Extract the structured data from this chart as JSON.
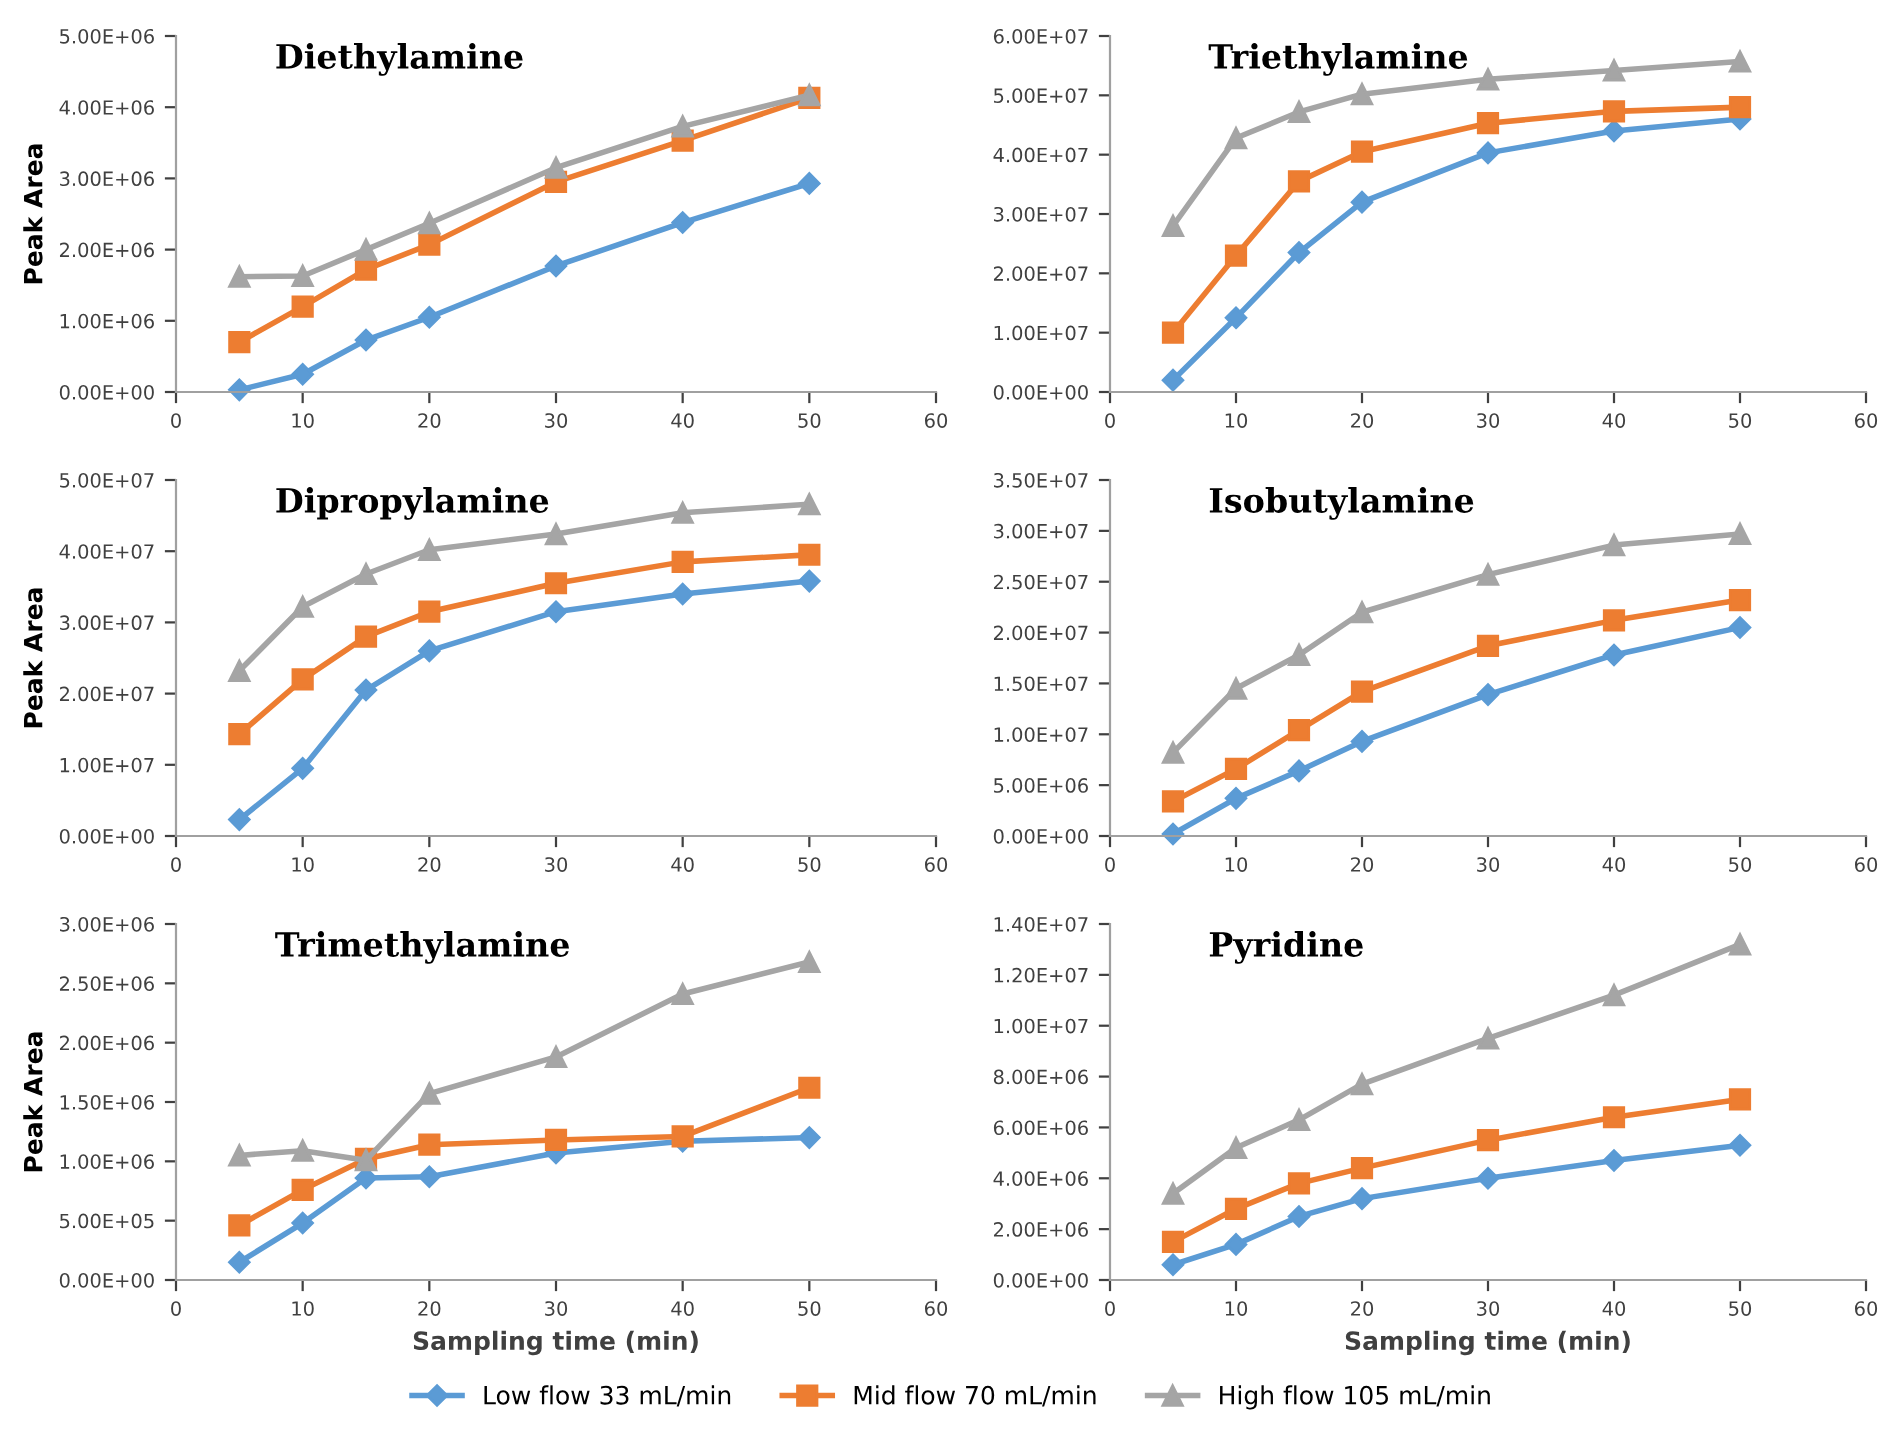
{
  "chart_data": [
    {
      "type": "line",
      "title": "Diethylamine",
      "ylabel": "Peak Area",
      "x": [
        5,
        10,
        15,
        20,
        30,
        40,
        50
      ],
      "xlim": [
        0,
        60
      ],
      "xticks": [
        0,
        10,
        20,
        30,
        40,
        50,
        60
      ],
      "ylim": [
        0,
        5000000
      ],
      "yticks": [
        {
          "value": 0,
          "label": "0.00E+00"
        },
        {
          "value": 1000000,
          "label": "1.00E+06"
        },
        {
          "value": 2000000,
          "label": "2.00E+06"
        },
        {
          "value": 3000000,
          "label": "3.00E+06"
        },
        {
          "value": 4000000,
          "label": "4.00E+06"
        },
        {
          "value": 5000000,
          "label": "5.00E+06"
        }
      ],
      "legend": "bottom",
      "series": [
        {
          "name": "Low flow 33 mL/min",
          "color": "#5b9bd5",
          "marker": "diamond",
          "values": [
            30000,
            250000,
            730000,
            1050000,
            1770000,
            2380000,
            2930000
          ]
        },
        {
          "name": "Mid flow 70 mL/min",
          "color": "#ed7d31",
          "marker": "square",
          "values": [
            700000,
            1200000,
            1720000,
            2070000,
            2950000,
            3530000,
            4130000
          ]
        },
        {
          "name": "High flow 105 mL/min",
          "color": "#a5a5a5",
          "marker": "triangle",
          "values": [
            1620000,
            1630000,
            2000000,
            2370000,
            3150000,
            3730000,
            4170000
          ]
        }
      ]
    },
    {
      "type": "line",
      "title": "Triethylamine",
      "x": [
        5,
        10,
        15,
        20,
        30,
        40,
        50
      ],
      "xlim": [
        0,
        60
      ],
      "xticks": [
        0,
        10,
        20,
        30,
        40,
        50,
        60
      ],
      "ylim": [
        0,
        60000000
      ],
      "yticks": [
        {
          "value": 0,
          "label": "0.00E+00"
        },
        {
          "value": 10000000,
          "label": "1.00E+07"
        },
        {
          "value": 20000000,
          "label": "2.00E+07"
        },
        {
          "value": 30000000,
          "label": "3.00E+07"
        },
        {
          "value": 40000000,
          "label": "4.00E+07"
        },
        {
          "value": 50000000,
          "label": "5.00E+07"
        },
        {
          "value": 60000000,
          "label": "6.00E+07"
        }
      ],
      "series": [
        {
          "color": "#5b9bd5",
          "marker": "diamond",
          "values": [
            2000000,
            12500000,
            23500000,
            32000000,
            40300000,
            44000000,
            46000000
          ]
        },
        {
          "color": "#ed7d31",
          "marker": "square",
          "values": [
            10000000,
            23000000,
            35500000,
            40500000,
            45300000,
            47300000,
            48000000
          ]
        },
        {
          "color": "#a5a5a5",
          "marker": "triangle",
          "values": [
            28000000,
            42800000,
            47200000,
            50200000,
            52700000,
            54200000,
            55700000
          ]
        }
      ]
    },
    {
      "type": "line",
      "title": "Dipropylamine",
      "ylabel": "Peak Area",
      "x": [
        5,
        10,
        15,
        20,
        30,
        40,
        50
      ],
      "xlim": [
        0,
        60
      ],
      "xticks": [
        0,
        10,
        20,
        30,
        40,
        50,
        60
      ],
      "ylim": [
        0,
        50000000
      ],
      "yticks": [
        {
          "value": 0,
          "label": "0.00E+00"
        },
        {
          "value": 10000000,
          "label": "1.00E+07"
        },
        {
          "value": 20000000,
          "label": "2.00E+07"
        },
        {
          "value": 30000000,
          "label": "3.00E+07"
        },
        {
          "value": 40000000,
          "label": "4.00E+07"
        },
        {
          "value": 50000000,
          "label": "5.00E+07"
        }
      ],
      "series": [
        {
          "color": "#5b9bd5",
          "marker": "diamond",
          "values": [
            2300000,
            9500000,
            20500000,
            26000000,
            31500000,
            34000000,
            35800000
          ]
        },
        {
          "color": "#ed7d31",
          "marker": "square",
          "values": [
            14300000,
            22000000,
            28000000,
            31500000,
            35500000,
            38500000,
            39500000
          ]
        },
        {
          "color": "#a5a5a5",
          "marker": "triangle",
          "values": [
            23200000,
            32200000,
            36800000,
            40200000,
            42400000,
            45400000,
            46600000
          ]
        }
      ]
    },
    {
      "type": "line",
      "title": "Isobutylamine",
      "x": [
        5,
        10,
        15,
        20,
        30,
        40,
        50
      ],
      "xlim": [
        0,
        60
      ],
      "xticks": [
        0,
        10,
        20,
        30,
        40,
        50,
        60
      ],
      "ylim": [
        0,
        35000000
      ],
      "yticks": [
        {
          "value": 0,
          "label": "0.00E+00"
        },
        {
          "value": 5000000,
          "label": "5.00E+06"
        },
        {
          "value": 10000000,
          "label": "1.00E+07"
        },
        {
          "value": 15000000,
          "label": "1.50E+07"
        },
        {
          "value": 20000000,
          "label": "2.00E+07"
        },
        {
          "value": 25000000,
          "label": "2.50E+07"
        },
        {
          "value": 30000000,
          "label": "3.00E+07"
        },
        {
          "value": 35000000,
          "label": "3.50E+07"
        }
      ],
      "series": [
        {
          "color": "#5b9bd5",
          "marker": "diamond",
          "values": [
            200000,
            3700000,
            6400000,
            9300000,
            13900000,
            17800000,
            20500000
          ]
        },
        {
          "color": "#ed7d31",
          "marker": "square",
          "values": [
            3400000,
            6600000,
            10400000,
            14200000,
            18700000,
            21200000,
            23200000
          ]
        },
        {
          "color": "#a5a5a5",
          "marker": "triangle",
          "values": [
            8200000,
            14500000,
            17800000,
            22000000,
            25700000,
            28600000,
            29700000
          ]
        }
      ]
    },
    {
      "type": "line",
      "title": "Trimethylamine",
      "ylabel": "Peak Area",
      "xlabel": "Sampling time (min)",
      "x": [
        5,
        10,
        15,
        20,
        30,
        40,
        50
      ],
      "xlim": [
        0,
        60
      ],
      "xticks": [
        0,
        10,
        20,
        30,
        40,
        50,
        60
      ],
      "ylim": [
        0,
        3000000
      ],
      "yticks": [
        {
          "value": 0,
          "label": "0.00E+00"
        },
        {
          "value": 500000,
          "label": "5.00E+05"
        },
        {
          "value": 1000000,
          "label": "1.00E+06"
        },
        {
          "value": 1500000,
          "label": "1.50E+06"
        },
        {
          "value": 2000000,
          "label": "2.00E+06"
        },
        {
          "value": 2500000,
          "label": "2.50E+06"
        },
        {
          "value": 3000000,
          "label": "3.00E+06"
        }
      ],
      "series": [
        {
          "color": "#5b9bd5",
          "marker": "diamond",
          "values": [
            150000,
            480000,
            860000,
            870000,
            1070000,
            1170000,
            1200000
          ]
        },
        {
          "color": "#ed7d31",
          "marker": "square",
          "values": [
            460000,
            760000,
            1020000,
            1140000,
            1180000,
            1210000,
            1620000
          ]
        },
        {
          "color": "#a5a5a5",
          "marker": "triangle",
          "values": [
            1050000,
            1090000,
            1010000,
            1570000,
            1880000,
            2410000,
            2680000
          ]
        }
      ]
    },
    {
      "type": "line",
      "title": "Pyridine",
      "xlabel": "Sampling time (min)",
      "x": [
        5,
        10,
        15,
        20,
        30,
        40,
        50
      ],
      "xlim": [
        0,
        60
      ],
      "xticks": [
        0,
        10,
        20,
        30,
        40,
        50,
        60
      ],
      "ylim": [
        0,
        14000000
      ],
      "yticks": [
        {
          "value": 0,
          "label": "0.00E+00"
        },
        {
          "value": 2000000,
          "label": "2.00E+06"
        },
        {
          "value": 4000000,
          "label": "4.00E+06"
        },
        {
          "value": 6000000,
          "label": "6.00E+06"
        },
        {
          "value": 8000000,
          "label": "8.00E+06"
        },
        {
          "value": 10000000,
          "label": "1.00E+07"
        },
        {
          "value": 12000000,
          "label": "1.20E+07"
        },
        {
          "value": 14000000,
          "label": "1.40E+07"
        }
      ],
      "series": [
        {
          "color": "#5b9bd5",
          "marker": "diamond",
          "values": [
            600000,
            1400000,
            2500000,
            3200000,
            4000000,
            4700000,
            5300000
          ]
        },
        {
          "color": "#ed7d31",
          "marker": "square",
          "values": [
            1500000,
            2800000,
            3800000,
            4400000,
            5500000,
            6400000,
            7100000
          ]
        },
        {
          "color": "#a5a5a5",
          "marker": "triangle",
          "values": [
            3400000,
            5200000,
            6300000,
            7700000,
            9500000,
            11200000,
            13200000
          ]
        }
      ]
    }
  ]
}
